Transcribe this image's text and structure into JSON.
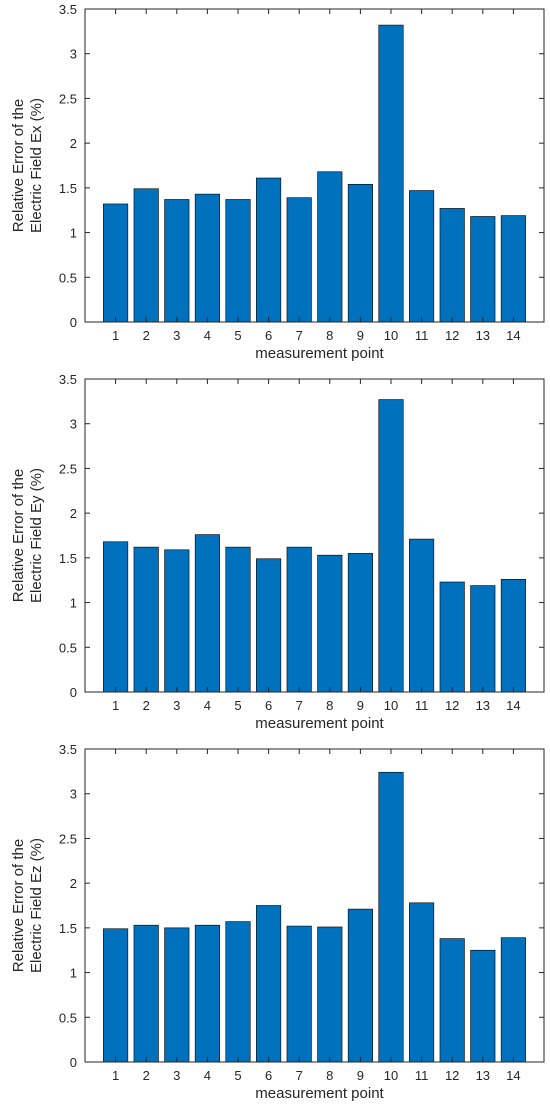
{
  "charts": [
    {
      "type": "bar",
      "categories": [
        "1",
        "2",
        "3",
        "4",
        "5",
        "6",
        "7",
        "8",
        "9",
        "10",
        "11",
        "12",
        "13",
        "14"
      ],
      "values": [
        1.32,
        1.49,
        1.37,
        1.43,
        1.37,
        1.61,
        1.39,
        1.68,
        1.54,
        3.32,
        1.47,
        1.27,
        1.18,
        1.19
      ],
      "xlabel": "measurement point",
      "ylabel_line1": "Relative Error of the",
      "ylabel_line2": "Electric Field Ex (%)",
      "ylim": [
        0,
        3.5
      ],
      "yticks": [
        "0",
        "0.5",
        "1",
        "1.5",
        "2",
        "2.5",
        "3",
        "3.5"
      ],
      "bar_color": "#0072BD"
    },
    {
      "type": "bar",
      "categories": [
        "1",
        "2",
        "3",
        "4",
        "5",
        "6",
        "7",
        "8",
        "9",
        "10",
        "11",
        "12",
        "13",
        "14"
      ],
      "values": [
        1.68,
        1.62,
        1.59,
        1.76,
        1.62,
        1.49,
        1.62,
        1.53,
        1.55,
        3.27,
        1.71,
        1.23,
        1.19,
        1.26
      ],
      "xlabel": "measurement point",
      "ylabel_line1": "Relative Error of the",
      "ylabel_line2": "Electric Field Ey (%)",
      "ylim": [
        0,
        3.5
      ],
      "yticks": [
        "0",
        "0.5",
        "1",
        "1.5",
        "2",
        "2.5",
        "3",
        "3.5"
      ],
      "bar_color": "#0072BD"
    },
    {
      "type": "bar",
      "categories": [
        "1",
        "2",
        "3",
        "4",
        "5",
        "6",
        "7",
        "8",
        "9",
        "10",
        "11",
        "12",
        "13",
        "14"
      ],
      "values": [
        1.49,
        1.53,
        1.5,
        1.53,
        1.57,
        1.75,
        1.52,
        1.51,
        1.71,
        3.24,
        1.78,
        1.38,
        1.25,
        1.39
      ],
      "xlabel": "measurement point",
      "ylabel_line1": "Relative Error of the",
      "ylabel_line2": "Electric Field Ez (%)",
      "ylim": [
        0,
        3.5
      ],
      "yticks": [
        "0",
        "0.5",
        "1",
        "1.5",
        "2",
        "2.5",
        "3",
        "3.5"
      ],
      "bar_color": "#0072BD"
    }
  ]
}
